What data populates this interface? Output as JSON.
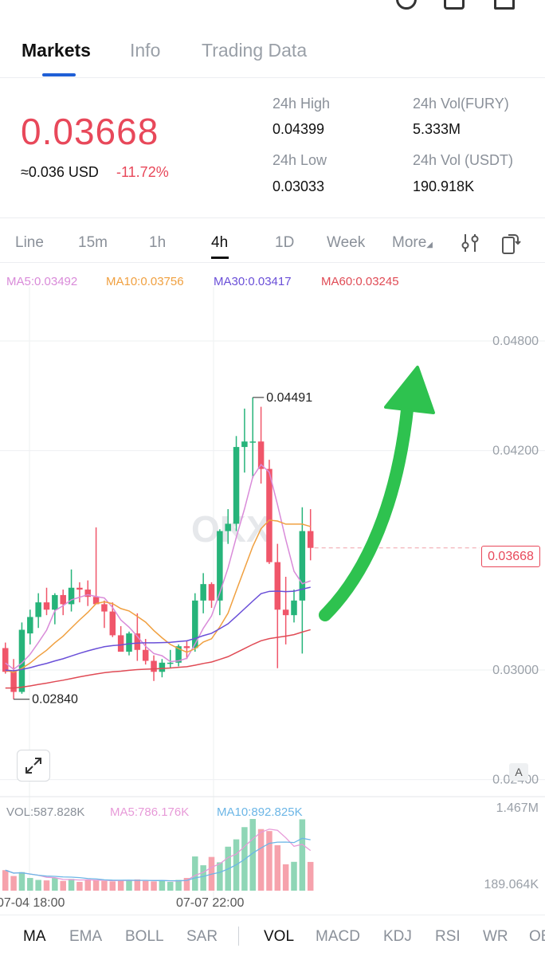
{
  "tabs": [
    {
      "label": "Markets"
    },
    {
      "label": "Info"
    },
    {
      "label": "Trading Data"
    }
  ],
  "ticker": {
    "last_price": "0.03668",
    "usd_value": "≈0.036 USD",
    "change_pct": "-11.72%",
    "high_label": "24h High",
    "high_value": "0.04399",
    "low_label": "24h Low",
    "low_value": "0.03033",
    "vol_base_label": "24h Vol(FURY)",
    "vol_base_value": "5.333M",
    "vol_quote_label": "24h Vol (USDT)",
    "vol_quote_value": "190.918K"
  },
  "timeframes": [
    {
      "label": "Line"
    },
    {
      "label": "15m"
    },
    {
      "label": "1h"
    },
    {
      "label": "4h"
    },
    {
      "label": "1D"
    },
    {
      "label": "Week"
    },
    {
      "label": "More"
    }
  ],
  "ma_legend": [
    {
      "text": "MA5:0.03492",
      "color": "#d98bd9"
    },
    {
      "text": "MA10:0.03756",
      "color": "#f0a040"
    },
    {
      "text": "MA30:0.03417",
      "color": "#6a4fd8"
    },
    {
      "text": "MA60:0.03245",
      "color": "#e04b55"
    }
  ],
  "price_axis": [
    "0.04800",
    "0.04200",
    "0.03000",
    "0.02400"
  ],
  "current_price_tag": "0.03668",
  "high_marker": "0.04491",
  "low_marker": "0.02840",
  "vol_legend": [
    {
      "text": "VOL:587.828K",
      "color": "#8a9099"
    },
    {
      "text": "MA5:786.176K",
      "color": "#e79ad8"
    },
    {
      "text": "MA10:892.825K",
      "color": "#6cb6e6"
    }
  ],
  "vol_axis": [
    "1.467M",
    "189.064K"
  ],
  "time_axis": [
    "07-04 18:00",
    "07-07 22:00"
  ],
  "watermark": "OKX",
  "autoscale_label": "A",
  "indicators": [
    {
      "label": "MA"
    },
    {
      "label": "EMA"
    },
    {
      "label": "BOLL"
    },
    {
      "label": "SAR"
    },
    {
      "label": "VOL"
    },
    {
      "label": "MACD"
    },
    {
      "label": "KDJ"
    },
    {
      "label": "RSI"
    },
    {
      "label": "WR"
    },
    {
      "label": "OB"
    }
  ],
  "colors": {
    "up": "#26b47a",
    "down": "#f0566a",
    "arrow": "#2ec24f",
    "accent": "#1f5fd6"
  },
  "chart_data": {
    "type": "candlestick",
    "interval": "4h",
    "candles": [
      {
        "o": 0.0312,
        "h": 0.0315,
        "l": 0.0298,
        "c": 0.0299
      },
      {
        "o": 0.0299,
        "h": 0.0306,
        "l": 0.0284,
        "c": 0.0288
      },
      {
        "o": 0.0288,
        "h": 0.0326,
        "l": 0.0287,
        "c": 0.0322
      },
      {
        "o": 0.032,
        "h": 0.0333,
        "l": 0.0314,
        "c": 0.0329
      },
      {
        "o": 0.0329,
        "h": 0.0342,
        "l": 0.0323,
        "c": 0.0337
      },
      {
        "o": 0.0337,
        "h": 0.0345,
        "l": 0.033,
        "c": 0.0333
      },
      {
        "o": 0.0333,
        "h": 0.0342,
        "l": 0.0325,
        "c": 0.0341
      },
      {
        "o": 0.0341,
        "h": 0.0344,
        "l": 0.033,
        "c": 0.0336
      },
      {
        "o": 0.0336,
        "h": 0.0355,
        "l": 0.0332,
        "c": 0.0345
      },
      {
        "o": 0.0345,
        "h": 0.0348,
        "l": 0.0337,
        "c": 0.0344
      },
      {
        "o": 0.0344,
        "h": 0.0349,
        "l": 0.0335,
        "c": 0.034
      },
      {
        "o": 0.034,
        "h": 0.0378,
        "l": 0.0337,
        "c": 0.0336
      },
      {
        "o": 0.0336,
        "h": 0.0338,
        "l": 0.0323,
        "c": 0.0332
      },
      {
        "o": 0.0332,
        "h": 0.0337,
        "l": 0.0318,
        "c": 0.0319
      },
      {
        "o": 0.0319,
        "h": 0.0324,
        "l": 0.031,
        "c": 0.031
      },
      {
        "o": 0.031,
        "h": 0.0321,
        "l": 0.0308,
        "c": 0.032
      },
      {
        "o": 0.032,
        "h": 0.0331,
        "l": 0.0305,
        "c": 0.0311
      },
      {
        "o": 0.0311,
        "h": 0.0317,
        "l": 0.0303,
        "c": 0.0305
      },
      {
        "o": 0.0305,
        "h": 0.0308,
        "l": 0.0294,
        "c": 0.0299
      },
      {
        "o": 0.0299,
        "h": 0.0306,
        "l": 0.0296,
        "c": 0.0304
      },
      {
        "o": 0.0304,
        "h": 0.0311,
        "l": 0.0301,
        "c": 0.0304
      },
      {
        "o": 0.0304,
        "h": 0.0314,
        "l": 0.0302,
        "c": 0.0313
      },
      {
        "o": 0.0313,
        "h": 0.0316,
        "l": 0.0306,
        "c": 0.0312
      },
      {
        "o": 0.0312,
        "h": 0.0342,
        "l": 0.031,
        "c": 0.0338
      },
      {
        "o": 0.0338,
        "h": 0.0353,
        "l": 0.0331,
        "c": 0.0347
      },
      {
        "o": 0.0347,
        "h": 0.0348,
        "l": 0.0334,
        "c": 0.0338
      },
      {
        "o": 0.0338,
        "h": 0.0377,
        "l": 0.033,
        "c": 0.0376
      },
      {
        "o": 0.0376,
        "h": 0.0388,
        "l": 0.0369,
        "c": 0.038
      },
      {
        "o": 0.038,
        "h": 0.0428,
        "l": 0.0376,
        "c": 0.0422
      },
      {
        "o": 0.0422,
        "h": 0.0443,
        "l": 0.0408,
        "c": 0.0425
      },
      {
        "o": 0.0425,
        "h": 0.04491,
        "l": 0.0405,
        "c": 0.0425
      },
      {
        "o": 0.0425,
        "h": 0.0444,
        "l": 0.0402,
        "c": 0.041
      },
      {
        "o": 0.041,
        "h": 0.0415,
        "l": 0.0358,
        "c": 0.0359
      },
      {
        "o": 0.0359,
        "h": 0.0369,
        "l": 0.0301,
        "c": 0.0333
      },
      {
        "o": 0.0333,
        "h": 0.0351,
        "l": 0.0314,
        "c": 0.033
      },
      {
        "o": 0.033,
        "h": 0.0344,
        "l": 0.0326,
        "c": 0.0338
      },
      {
        "o": 0.0338,
        "h": 0.0389,
        "l": 0.0309,
        "c": 0.0376
      },
      {
        "o": 0.0376,
        "h": 0.0388,
        "l": 0.036,
        "c": 0.03668
      }
    ],
    "volume": [
      420,
      300,
      380,
      260,
      220,
      210,
      260,
      200,
      240,
      180,
      230,
      220,
      200,
      190,
      210,
      220,
      230,
      200,
      190,
      200,
      180,
      220,
      260,
      700,
      520,
      690,
      580,
      900,
      1050,
      1300,
      1467,
      1260,
      1220,
      930,
      540,
      590,
      1460,
      588
    ],
    "volume_unit": "K",
    "yaxis_ticks": [
      0.048,
      0.042,
      0.03,
      0.024
    ],
    "ylim": [
      0.0236,
      0.0504
    ],
    "xaxis_labels": [
      "07-04 18:00",
      "07-07 22:00"
    ],
    "series_overlays": [
      "MA5",
      "MA10",
      "MA30",
      "MA60"
    ],
    "max_marker": 0.04491,
    "min_marker": 0.0284,
    "last_price": 0.03668
  }
}
